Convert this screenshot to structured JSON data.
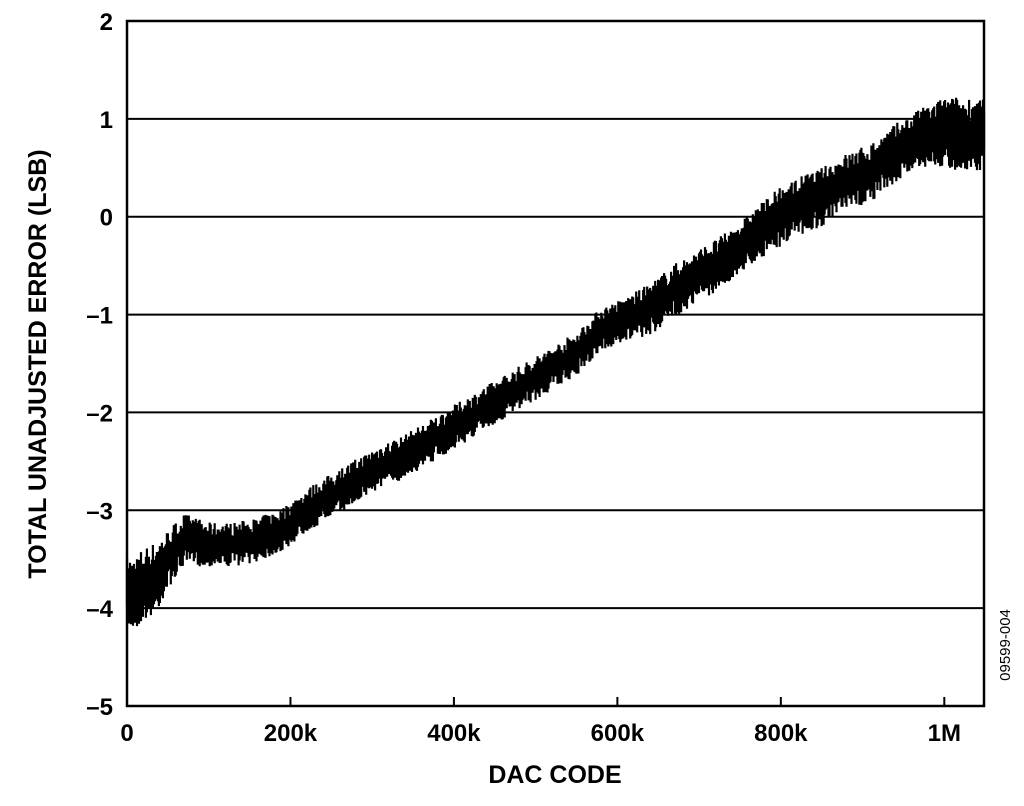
{
  "figure_id": "09599-004",
  "chart_data": {
    "type": "line",
    "title": "",
    "xlabel": "DAC CODE",
    "ylabel": "TOTAL UNADJUSTED ERROR (LSB)",
    "xlim": [
      0,
      1048575
    ],
    "ylim": [
      -5,
      2
    ],
    "x_ticks": [
      {
        "value": 0,
        "label": "0"
      },
      {
        "value": 200000,
        "label": "200k"
      },
      {
        "value": 400000,
        "label": "400k"
      },
      {
        "value": 600000,
        "label": "600k"
      },
      {
        "value": 800000,
        "label": "800k"
      },
      {
        "value": 1000000,
        "label": "1M"
      }
    ],
    "y_ticks": [
      {
        "value": 2,
        "label": "2"
      },
      {
        "value": 1,
        "label": "1"
      },
      {
        "value": 0,
        "label": "0"
      },
      {
        "value": -1,
        "label": "–1"
      },
      {
        "value": -2,
        "label": "–2"
      },
      {
        "value": -3,
        "label": "–3"
      },
      {
        "value": -4,
        "label": "–4"
      },
      {
        "value": -5,
        "label": "–5"
      }
    ],
    "grid": "horizontal",
    "legend": "none",
    "series": [
      {
        "color": "#000000",
        "x": [
          0,
          10000,
          20000,
          35000,
          50000,
          70000,
          100000,
          130000,
          160000,
          190000,
          220000,
          250000,
          280000,
          310000,
          340000,
          370000,
          400000,
          430000,
          460000,
          490000,
          520000,
          550000,
          580000,
          610000,
          640000,
          670000,
          700000,
          730000,
          760000,
          790000,
          820000,
          850000,
          880000,
          910000,
          940000,
          970000,
          1000000,
          1030000,
          1048575
        ],
        "mean": [
          -3.85,
          -3.85,
          -3.75,
          -3.7,
          -3.5,
          -3.3,
          -3.35,
          -3.35,
          -3.3,
          -3.2,
          -3.0,
          -2.85,
          -2.7,
          -2.55,
          -2.45,
          -2.3,
          -2.15,
          -2.0,
          -1.85,
          -1.7,
          -1.55,
          -1.4,
          -1.15,
          -1.05,
          -0.95,
          -0.75,
          -0.6,
          -0.45,
          -0.25,
          -0.05,
          0.1,
          0.2,
          0.35,
          0.45,
          0.65,
          0.8,
          0.85,
          0.85,
          0.85
        ],
        "spread": [
          0.25,
          0.25,
          0.25,
          0.25,
          0.2,
          0.18,
          0.15,
          0.15,
          0.15,
          0.15,
          0.15,
          0.15,
          0.15,
          0.15,
          0.15,
          0.15,
          0.15,
          0.15,
          0.15,
          0.15,
          0.15,
          0.15,
          0.15,
          0.15,
          0.18,
          0.18,
          0.18,
          0.18,
          0.18,
          0.2,
          0.2,
          0.2,
          0.2,
          0.2,
          0.2,
          0.2,
          0.25,
          0.25,
          0.25
        ]
      }
    ]
  }
}
